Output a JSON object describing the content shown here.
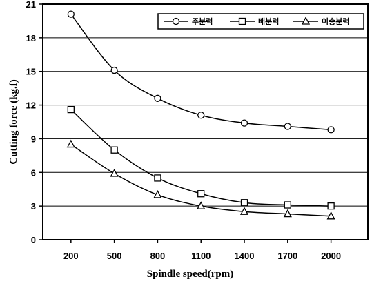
{
  "chart_data": {
    "type": "line",
    "title": "",
    "xlabel": "Spindle speed(rpm)",
    "ylabel": "Cutting force (kg.f)",
    "categories": [
      "200",
      "500",
      "800",
      "1100",
      "1400",
      "1700",
      "2000"
    ],
    "ylim": [
      0,
      21
    ],
    "yticks": [
      "0",
      "3",
      "6",
      "9",
      "12",
      "15",
      "18",
      "21"
    ],
    "grid": true,
    "legend_position": "top-right",
    "series": [
      {
        "name": "주분력",
        "marker": "circle",
        "values": [
          20.1,
          15.1,
          12.6,
          11.1,
          10.4,
          10.1,
          9.8
        ]
      },
      {
        "name": "배분력",
        "marker": "square",
        "values": [
          11.6,
          8.0,
          5.5,
          4.1,
          3.3,
          3.1,
          3.0
        ]
      },
      {
        "name": "이송분력",
        "marker": "triangle",
        "values": [
          8.5,
          5.9,
          4.0,
          3.0,
          2.5,
          2.3,
          2.1
        ]
      }
    ]
  }
}
